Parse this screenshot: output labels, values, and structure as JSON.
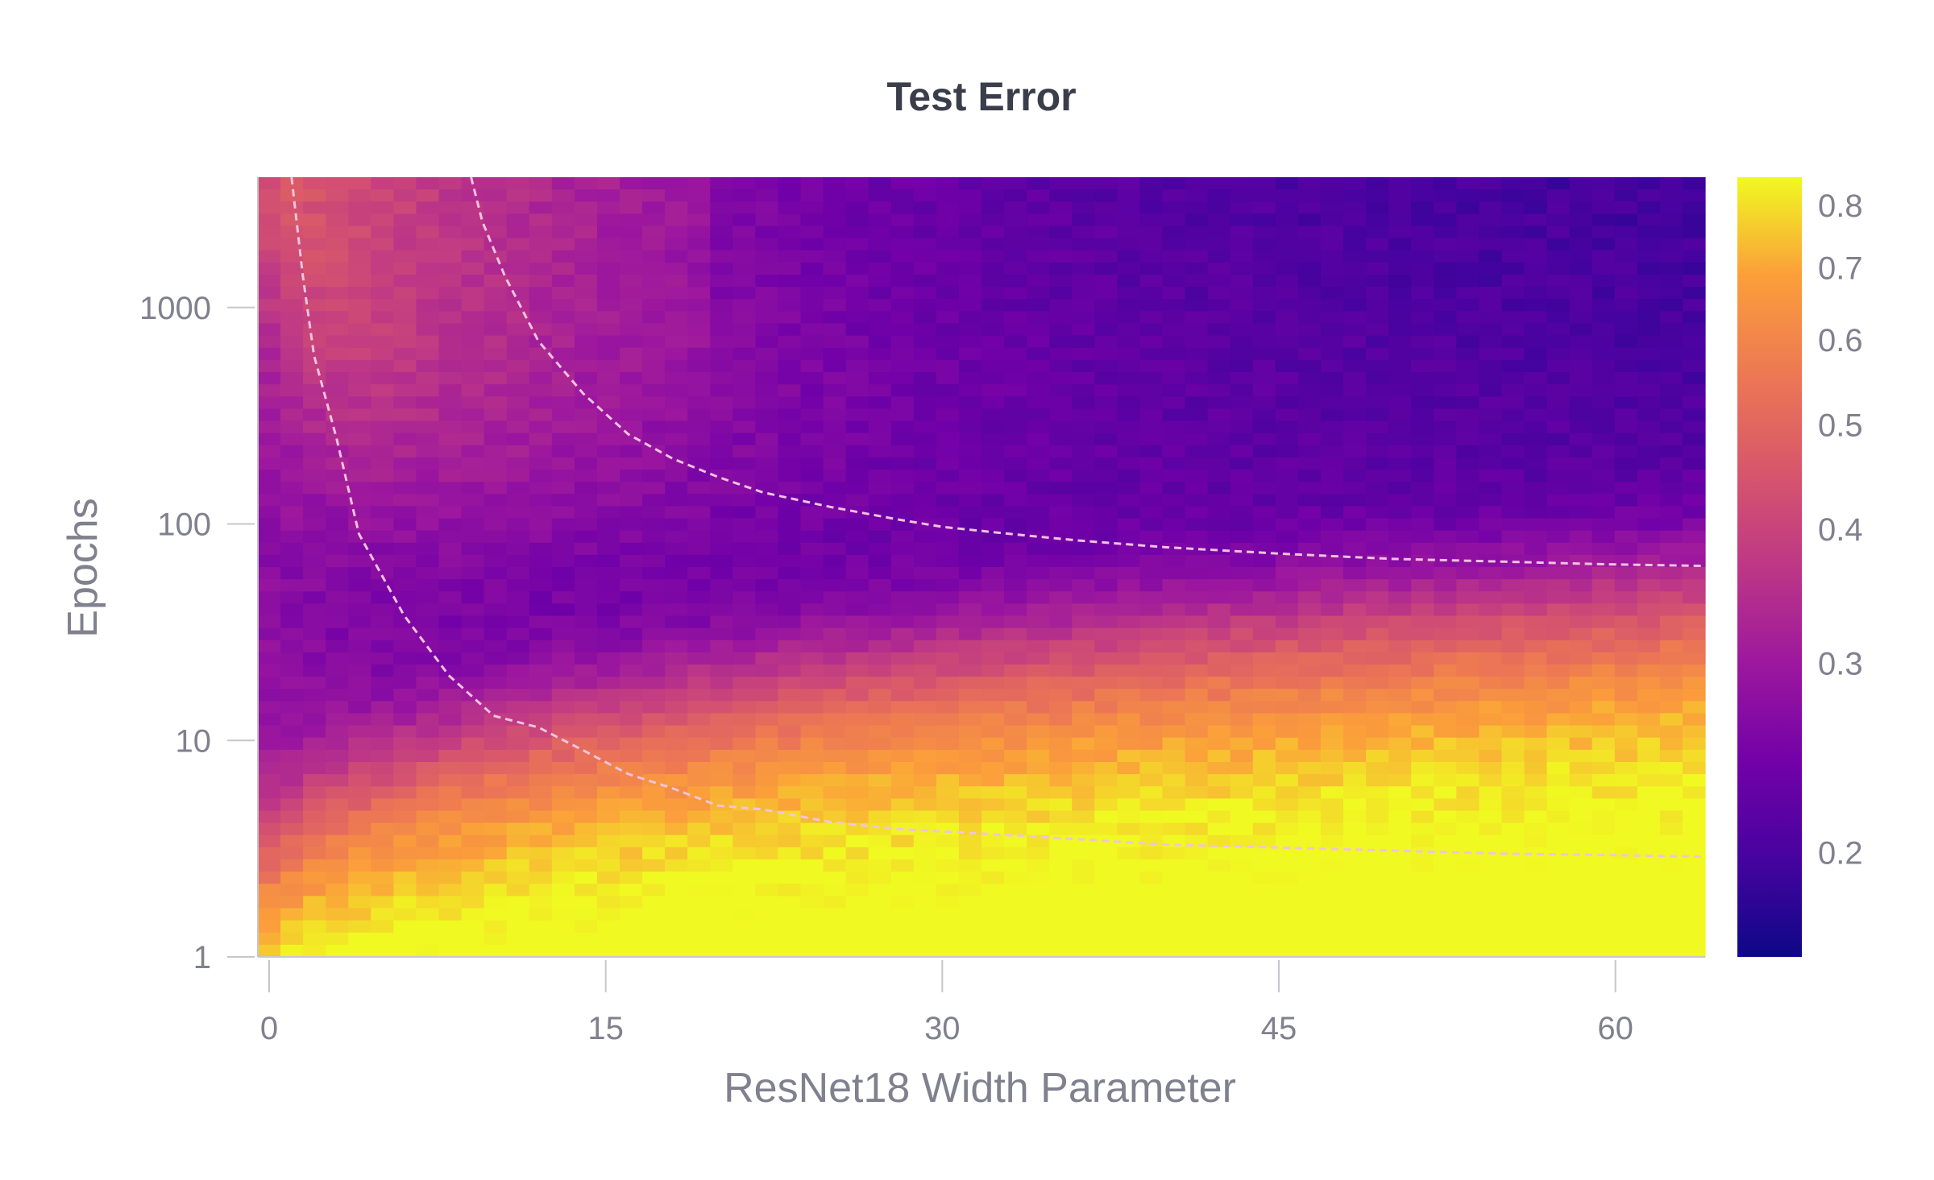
{
  "chart_data": {
    "type": "heatmap",
    "title": "Test Error",
    "xlabel": "ResNet18 Width Parameter",
    "ylabel": "Epochs",
    "x_range": [
      1,
      64
    ],
    "y_range": [
      1,
      4000
    ],
    "y_scale": "log",
    "x_ticks": [
      0,
      15,
      30,
      45,
      60
    ],
    "x_tick_labels": [
      "0",
      "15",
      "30",
      "45",
      "60"
    ],
    "y_ticks": [
      1,
      10,
      100,
      1000
    ],
    "y_tick_labels": [
      "1",
      "10",
      "100",
      "1000"
    ],
    "colorbar": {
      "colormap": "plasma",
      "range": [
        0.16,
        0.85
      ],
      "ticks": [
        0.2,
        0.3,
        0.4,
        0.5,
        0.6,
        0.7,
        0.8
      ],
      "tick_labels": [
        "0.2",
        "0.3",
        "0.4",
        "0.5",
        "0.6",
        "0.7",
        "0.8"
      ]
    },
    "description": "Test error as a function of model width (x) and training epochs (y, log scale); dashed white lines are iso-error contours",
    "contours": [
      {
        "style": "dashed",
        "color": "#f2c4dc",
        "points": [
          [
            1,
            4000
          ],
          [
            1.5,
            1400
          ],
          [
            2,
            600
          ],
          [
            3,
            250
          ],
          [
            4,
            90
          ],
          [
            6,
            38
          ],
          [
            8,
            20
          ],
          [
            10,
            13
          ],
          [
            12,
            11.5
          ],
          [
            14,
            9
          ],
          [
            16,
            7
          ],
          [
            18,
            6
          ],
          [
            20,
            5
          ],
          [
            22,
            4.8
          ],
          [
            25,
            4.2
          ],
          [
            28,
            3.9
          ],
          [
            32,
            3.7
          ],
          [
            36,
            3.5
          ],
          [
            40,
            3.3
          ],
          [
            45,
            3.2
          ],
          [
            50,
            3.1
          ],
          [
            55,
            3.0
          ],
          [
            60,
            2.95
          ],
          [
            64,
            2.9
          ]
        ]
      },
      {
        "style": "dashed",
        "color": "#f2c4dc",
        "points": [
          [
            9,
            4000
          ],
          [
            9.5,
            2500
          ],
          [
            10.5,
            1400
          ],
          [
            12,
            700
          ],
          [
            14,
            400
          ],
          [
            16,
            260
          ],
          [
            18,
            200
          ],
          [
            20,
            165
          ],
          [
            22,
            140
          ],
          [
            25,
            120
          ],
          [
            28,
            105
          ],
          [
            30,
            97
          ],
          [
            33,
            90
          ],
          [
            36,
            84
          ],
          [
            40,
            78
          ],
          [
            45,
            73
          ],
          [
            50,
            69
          ],
          [
            55,
            67
          ],
          [
            60,
            65
          ],
          [
            64,
            64
          ]
        ]
      }
    ]
  }
}
